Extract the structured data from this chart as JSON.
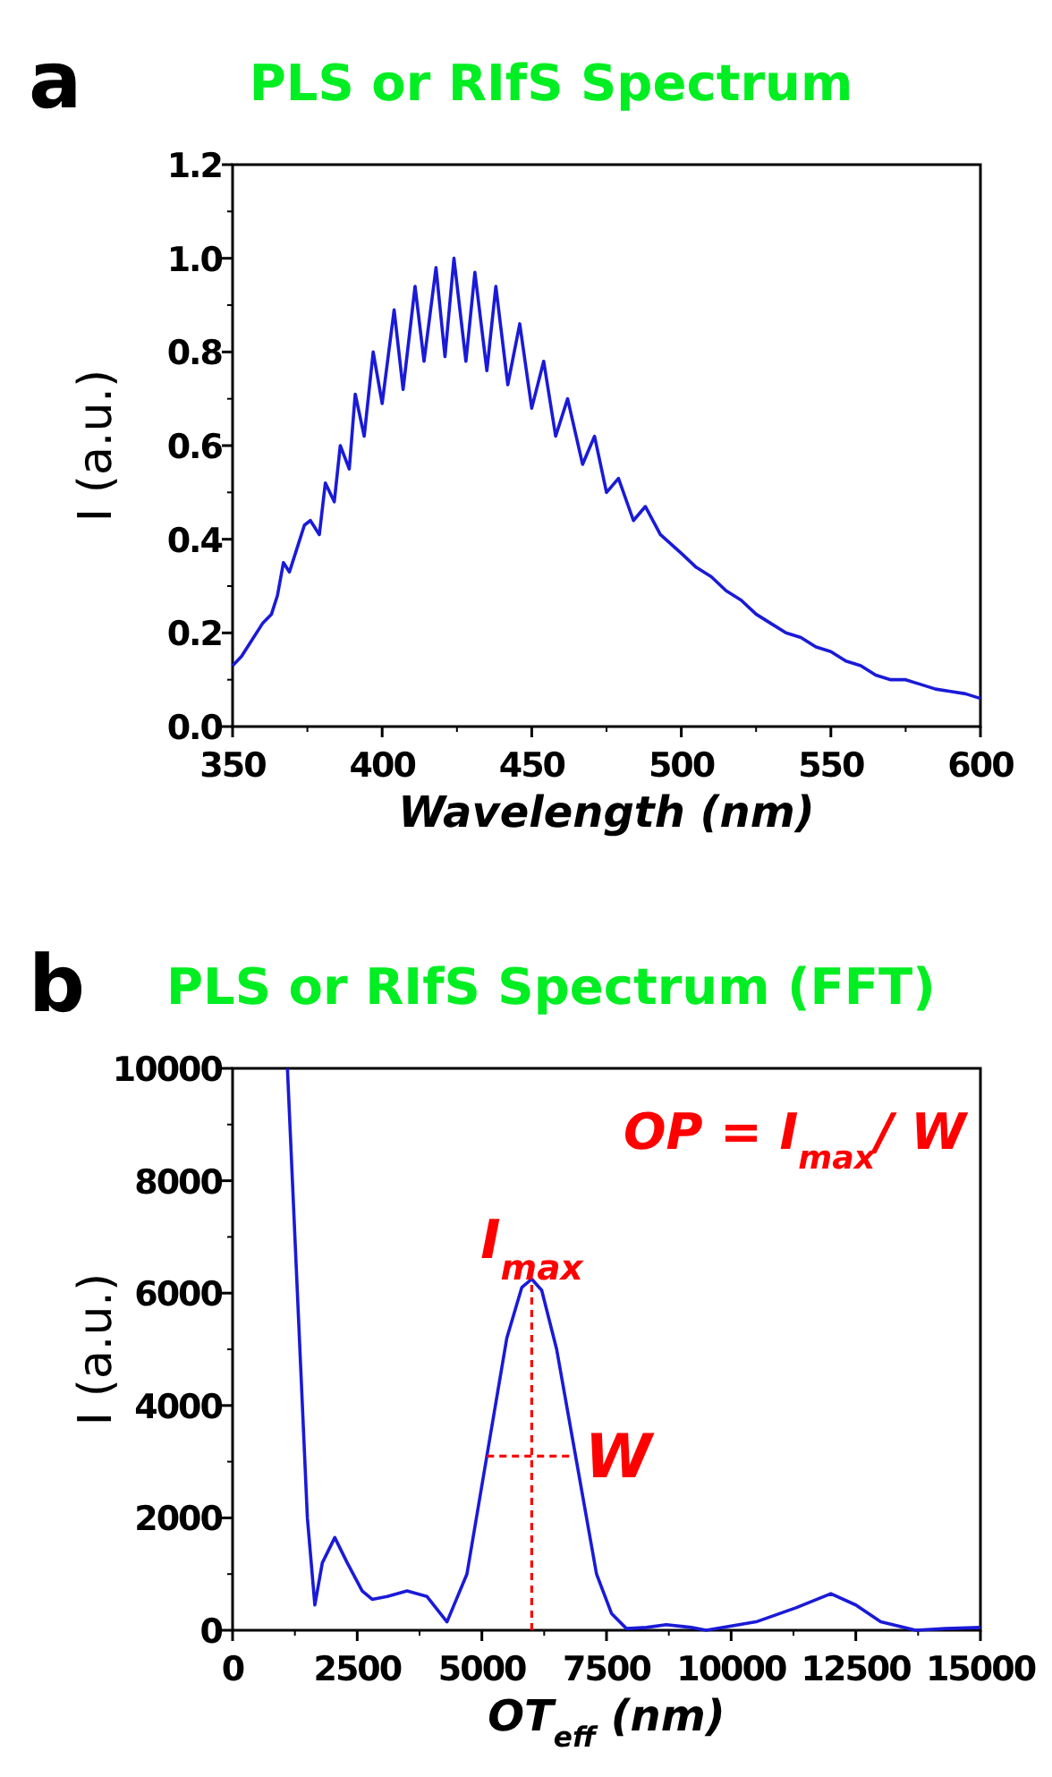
{
  "chart_data": [
    {
      "type": "line",
      "title": "PLS or RIfS Spectrum",
      "xlabel": "Wavelength (nm)",
      "ylabel": "I (a.u.)",
      "annotations": [
        "a"
      ],
      "xlim": [
        350,
        600
      ],
      "xticks": [
        350,
        400,
        450,
        500,
        550,
        600
      ],
      "ylim": [
        0,
        1.2
      ],
      "yticks": [
        {
          "value": 0,
          "label": "0.0"
        },
        0.2,
        0.4,
        0.6,
        0.8,
        {
          "value": 1,
          "label": "1.0"
        },
        1.2
      ],
      "series": [
        {
          "color": "#1a1ad8",
          "x": [
            350,
            353,
            356,
            360,
            363,
            365,
            367,
            369,
            371,
            374,
            376,
            379,
            381,
            384,
            386,
            389,
            391,
            394,
            397,
            400,
            404,
            407,
            411,
            414,
            418,
            421,
            424,
            428,
            431,
            435,
            438,
            442,
            446,
            450,
            454,
            458,
            462,
            467,
            471,
            475,
            479,
            484,
            488,
            493,
            500,
            505,
            510,
            515,
            520,
            525,
            530,
            535,
            540,
            545,
            550,
            555,
            560,
            565,
            570,
            575,
            580,
            585,
            590,
            595,
            600
          ],
          "values": [
            0.13,
            0.15,
            0.18,
            0.22,
            0.24,
            0.28,
            0.35,
            0.33,
            0.37,
            0.43,
            0.44,
            0.41,
            0.52,
            0.48,
            0.6,
            0.55,
            0.71,
            0.62,
            0.8,
            0.69,
            0.89,
            0.72,
            0.94,
            0.78,
            0.98,
            0.79,
            1.0,
            0.78,
            0.97,
            0.76,
            0.94,
            0.73,
            0.86,
            0.68,
            0.78,
            0.62,
            0.7,
            0.56,
            0.62,
            0.5,
            0.53,
            0.44,
            0.47,
            0.41,
            0.37,
            0.34,
            0.32,
            0.29,
            0.27,
            0.24,
            0.22,
            0.2,
            0.19,
            0.17,
            0.16,
            0.14,
            0.13,
            0.11,
            0.1,
            0.1,
            0.09,
            0.08,
            0.075,
            0.07,
            0.06
          ]
        }
      ]
    },
    {
      "type": "line",
      "title": "PLS or RIfS Spectrum (FFT)",
      "xlabel": "OT$_{eff}$ (nm)",
      "ylabel": "I (a.u.)",
      "annotations": [
        "b",
        "OP = I$_{max}$/ W",
        {
          "text": "I$_{max}$",
          "x": 6000,
          "y": 6250
        },
        {
          "text": "W",
          "x": 6850,
          "y": 3100
        }
      ],
      "xlim": [
        0,
        15000
      ],
      "xticks": [
        0,
        2500,
        5000,
        7500,
        10000,
        12500,
        15000
      ],
      "ylim": [
        0,
        10000
      ],
      "yticks": [
        0,
        2000,
        4000,
        6000,
        8000,
        10000
      ],
      "series": [
        {
          "color": "#1a1ad8",
          "x": [
            1100,
            1300,
            1500,
            1650,
            1800,
            2050,
            2300,
            2600,
            2800,
            3100,
            3500,
            3900,
            4300,
            4700,
            5100,
            5500,
            5800,
            6000,
            6200,
            6500,
            6900,
            7300,
            7600,
            7900,
            8300,
            8700,
            9200,
            9500,
            10500,
            11300,
            12000,
            12500,
            13000,
            13700,
            14300,
            15000
          ],
          "values": [
            10000,
            6000,
            2000,
            450,
            1200,
            1650,
            1200,
            700,
            550,
            600,
            700,
            600,
            150,
            1000,
            3100,
            5200,
            6100,
            6250,
            6050,
            5000,
            3000,
            1000,
            300,
            30,
            50,
            100,
            50,
            0,
            150,
            400,
            650,
            450,
            150,
            0,
            30,
            50
          ]
        },
        {
          "color": "#ff0000",
          "line_style": "dashed",
          "x": [
            6000,
            6000
          ],
          "values": [
            0,
            6250
          ]
        },
        {
          "color": "#ff0000",
          "line_style": "dashed",
          "x": [
            5100,
            6850
          ],
          "values": [
            3100,
            3100
          ]
        }
      ]
    }
  ]
}
